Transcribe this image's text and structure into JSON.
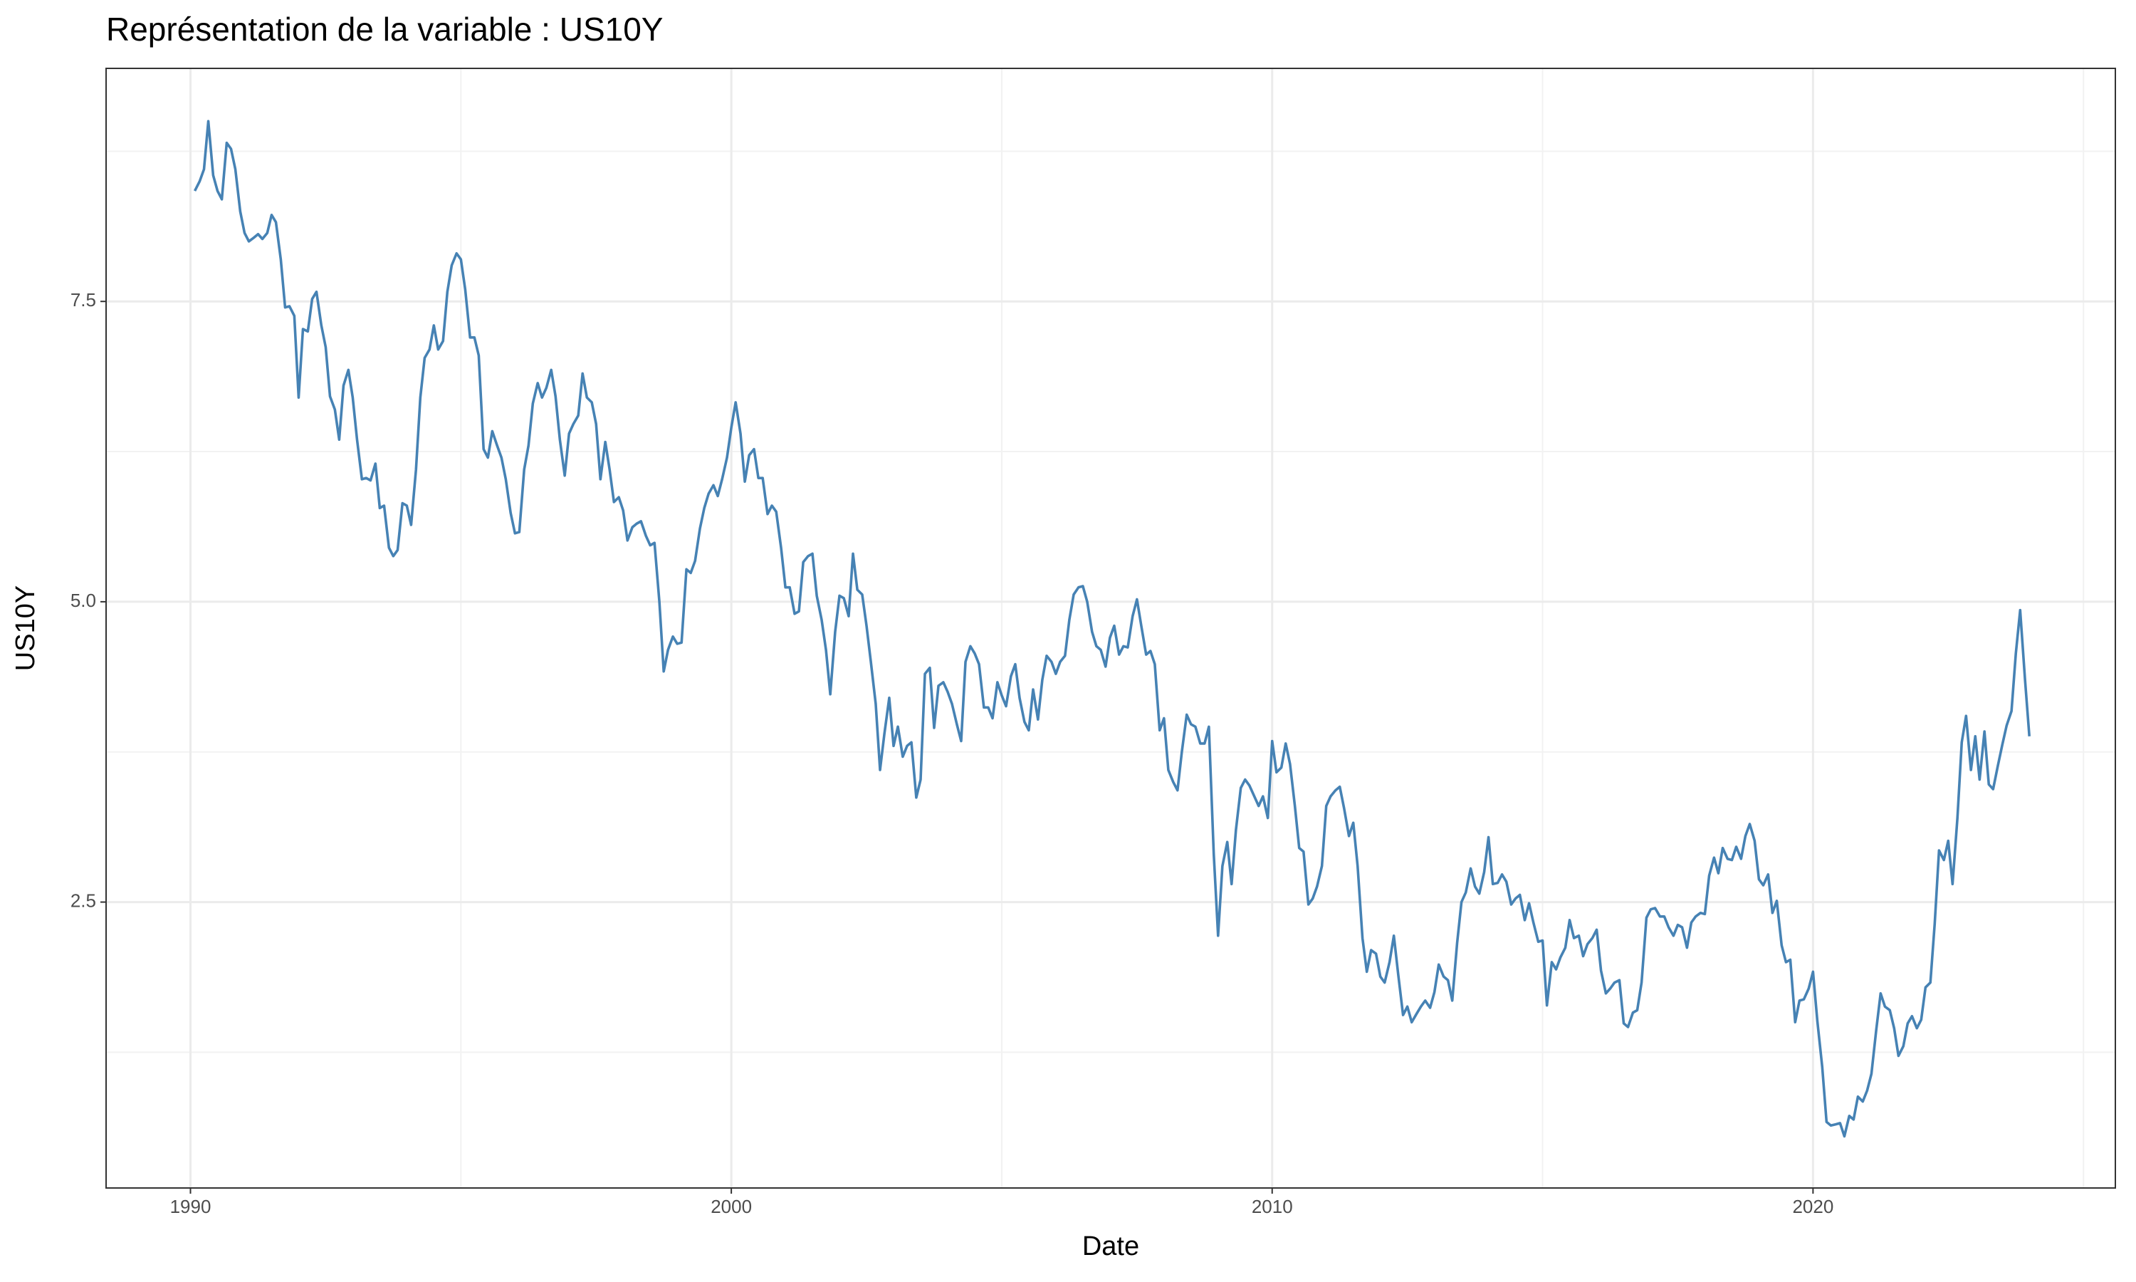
{
  "chart_data": {
    "type": "line",
    "title": "Représentation de la variable :  US10Y",
    "xlabel": "Date",
    "ylabel": "US10Y",
    "color": "#4682b4",
    "grid": true,
    "xlim": [
      1988.44,
      2025.59
    ],
    "xticks": [
      1990,
      2000,
      2010,
      2020
    ],
    "ylim": [
      0.12,
      9.44
    ],
    "yticks": [
      {
        "value": 2.5,
        "label": "2.5"
      },
      {
        "value": 5,
        "label": "5.0"
      },
      {
        "value": 7.5,
        "label": "7.5"
      }
    ],
    "x": [
      1990.08,
      1990.17,
      1990.25,
      1990.33,
      1990.42,
      1990.5,
      1990.58,
      1990.67,
      1990.75,
      1990.83,
      1990.92,
      1991,
      1991.08,
      1991.17,
      1991.25,
      1991.33,
      1991.42,
      1991.5,
      1991.58,
      1991.67,
      1991.75,
      1991.83,
      1991.92,
      1992,
      1992.08,
      1992.17,
      1992.25,
      1992.33,
      1992.42,
      1992.5,
      1992.58,
      1992.67,
      1992.75,
      1992.83,
      1992.92,
      1993,
      1993.08,
      1993.17,
      1993.25,
      1993.33,
      1993.42,
      1993.5,
      1993.58,
      1993.67,
      1993.75,
      1993.83,
      1993.92,
      1994,
      1994.08,
      1994.17,
      1994.25,
      1994.33,
      1994.42,
      1994.5,
      1994.58,
      1994.67,
      1994.75,
      1994.83,
      1994.92,
      1995,
      1995.08,
      1995.17,
      1995.25,
      1995.33,
      1995.42,
      1995.5,
      1995.58,
      1995.67,
      1995.75,
      1995.83,
      1995.92,
      1996,
      1996.08,
      1996.17,
      1996.25,
      1996.33,
      1996.42,
      1996.5,
      1996.58,
      1996.67,
      1996.75,
      1996.83,
      1996.92,
      1997,
      1997.08,
      1997.17,
      1997.25,
      1997.33,
      1997.42,
      1997.5,
      1997.58,
      1997.67,
      1997.75,
      1997.83,
      1997.92,
      1998,
      1998.08,
      1998.17,
      1998.25,
      1998.33,
      1998.42,
      1998.5,
      1998.58,
      1998.67,
      1998.75,
      1998.83,
      1998.92,
      1999,
      1999.08,
      1999.17,
      1999.25,
      1999.33,
      1999.42,
      1999.5,
      1999.58,
      1999.67,
      1999.75,
      1999.83,
      1999.92,
      2000,
      2000.08,
      2000.17,
      2000.25,
      2000.33,
      2000.42,
      2000.5,
      2000.58,
      2000.67,
      2000.75,
      2000.83,
      2000.92,
      2001,
      2001.08,
      2001.17,
      2001.25,
      2001.33,
      2001.42,
      2001.5,
      2001.58,
      2001.67,
      2001.75,
      2001.83,
      2001.92,
      2002,
      2002.08,
      2002.17,
      2002.25,
      2002.33,
      2002.42,
      2002.5,
      2002.58,
      2002.67,
      2002.75,
      2002.83,
      2002.92,
      2003,
      2003.08,
      2003.17,
      2003.25,
      2003.33,
      2003.42,
      2003.5,
      2003.58,
      2003.67,
      2003.75,
      2003.83,
      2003.92,
      2004,
      2004.08,
      2004.17,
      2004.25,
      2004.33,
      2004.42,
      2004.5,
      2004.58,
      2004.67,
      2004.75,
      2004.83,
      2004.92,
      2005,
      2005.08,
      2005.17,
      2005.25,
      2005.33,
      2005.42,
      2005.5,
      2005.58,
      2005.67,
      2005.75,
      2005.83,
      2005.92,
      2006,
      2006.08,
      2006.17,
      2006.25,
      2006.33,
      2006.42,
      2006.5,
      2006.58,
      2006.67,
      2006.75,
      2006.83,
      2006.92,
      2007,
      2007.08,
      2007.17,
      2007.25,
      2007.33,
      2007.42,
      2007.5,
      2007.58,
      2007.67,
      2007.75,
      2007.83,
      2007.92,
      2008,
      2008.08,
      2008.17,
      2008.25,
      2008.33,
      2008.42,
      2008.5,
      2008.58,
      2008.67,
      2008.75,
      2008.83,
      2008.92,
      2009,
      2009.08,
      2009.17,
      2009.25,
      2009.33,
      2009.42,
      2009.5,
      2009.58,
      2009.67,
      2009.75,
      2009.83,
      2009.92,
      2010,
      2010.08,
      2010.17,
      2010.25,
      2010.33,
      2010.42,
      2010.5,
      2010.58,
      2010.67,
      2010.75,
      2010.83,
      2010.92,
      2011,
      2011.08,
      2011.17,
      2011.25,
      2011.33,
      2011.42,
      2011.5,
      2011.58,
      2011.67,
      2011.75,
      2011.83,
      2011.92,
      2012,
      2012.08,
      2012.17,
      2012.25,
      2012.33,
      2012.42,
      2012.5,
      2012.58,
      2012.67,
      2012.75,
      2012.83,
      2012.92,
      2013,
      2013.08,
      2013.17,
      2013.25,
      2013.33,
      2013.42,
      2013.5,
      2013.58,
      2013.67,
      2013.75,
      2013.83,
      2013.92,
      2014,
      2014.08,
      2014.17,
      2014.25,
      2014.33,
      2014.42,
      2014.5,
      2014.58,
      2014.67,
      2014.75,
      2014.83,
      2014.92,
      2015,
      2015.08,
      2015.17,
      2015.25,
      2015.33,
      2015.42,
      2015.5,
      2015.58,
      2015.67,
      2015.75,
      2015.83,
      2015.92,
      2016,
      2016.08,
      2016.17,
      2016.25,
      2016.33,
      2016.42,
      2016.5,
      2016.58,
      2016.67,
      2016.75,
      2016.83,
      2016.92,
      2017,
      2017.08,
      2017.17,
      2017.25,
      2017.33,
      2017.42,
      2017.5,
      2017.58,
      2017.67,
      2017.75,
      2017.83,
      2017.92,
      2018,
      2018.08,
      2018.17,
      2018.25,
      2018.33,
      2018.42,
      2018.5,
      2018.58,
      2018.67,
      2018.75,
      2018.83,
      2018.92,
      2019,
      2019.08,
      2019.17,
      2019.25,
      2019.33,
      2019.42,
      2019.5,
      2019.58,
      2019.67,
      2019.75,
      2019.83,
      2019.92,
      2020,
      2020.08,
      2020.17,
      2020.25,
      2020.33,
      2020.42,
      2020.5,
      2020.58,
      2020.67,
      2020.75,
      2020.83,
      2020.92,
      2021,
      2021.08,
      2021.17,
      2021.25,
      2021.33,
      2021.42,
      2021.5,
      2021.58,
      2021.67,
      2021.75,
      2021.83,
      2021.92,
      2022,
      2022.08,
      2022.17,
      2022.25,
      2022.33,
      2022.42,
      2022.5,
      2022.58,
      2022.67,
      2022.75,
      2022.83,
      2022.92,
      2023,
      2023.08,
      2023.17,
      2023.25,
      2023.33,
      2023.42,
      2023.5,
      2023.58,
      2023.67,
      2023.75,
      2023.83,
      2023.92,
      2024
    ],
    "values": [
      8.42,
      8.5,
      8.6,
      9.0,
      8.55,
      8.42,
      8.35,
      8.82,
      8.77,
      8.6,
      8.25,
      8.07,
      8.0,
      8.03,
      8.06,
      8.02,
      8.07,
      8.22,
      8.16,
      7.85,
      7.45,
      7.46,
      7.38,
      6.7,
      7.27,
      7.25,
      7.52,
      7.58,
      7.3,
      7.12,
      6.71,
      6.6,
      6.35,
      6.8,
      6.93,
      6.7,
      6.35,
      6.02,
      6.03,
      6.01,
      6.15,
      5.78,
      5.8,
      5.45,
      5.38,
      5.43,
      5.82,
      5.8,
      5.64,
      6.1,
      6.7,
      7.03,
      7.1,
      7.3,
      7.1,
      7.17,
      7.58,
      7.8,
      7.9,
      7.85,
      7.6,
      7.2,
      7.2,
      7.05,
      6.27,
      6.2,
      6.42,
      6.3,
      6.2,
      6.02,
      5.74,
      5.57,
      5.58,
      6.1,
      6.3,
      6.65,
      6.82,
      6.7,
      6.78,
      6.93,
      6.71,
      6.35,
      6.05,
      6.4,
      6.48,
      6.55,
      6.9,
      6.7,
      6.66,
      6.48,
      6.02,
      6.33,
      6.1,
      5.83,
      5.87,
      5.76,
      5.51,
      5.62,
      5.65,
      5.67,
      5.55,
      5.47,
      5.49,
      5.0,
      4.42,
      4.6,
      4.71,
      4.65,
      4.66,
      5.27,
      5.24,
      5.34,
      5.61,
      5.78,
      5.9,
      5.97,
      5.88,
      6.02,
      6.2,
      6.45,
      6.66,
      6.4,
      6.0,
      6.22,
      6.27,
      6.03,
      6.03,
      5.73,
      5.8,
      5.75,
      5.45,
      5.12,
      5.12,
      4.9,
      4.92,
      5.33,
      5.38,
      5.4,
      5.05,
      4.85,
      4.6,
      4.23,
      4.75,
      5.05,
      5.03,
      4.88,
      5.4,
      5.1,
      5.06,
      4.8,
      4.5,
      4.15,
      3.6,
      3.9,
      4.2,
      3.8,
      3.96,
      3.71,
      3.8,
      3.83,
      3.37,
      3.52,
      4.4,
      4.45,
      3.95,
      4.3,
      4.33,
      4.25,
      4.15,
      3.98,
      3.84,
      4.5,
      4.63,
      4.57,
      4.48,
      4.12,
      4.12,
      4.03,
      4.33,
      4.22,
      4.13,
      4.38,
      4.48,
      4.2,
      4.0,
      3.93,
      4.27,
      4.02,
      4.35,
      4.55,
      4.5,
      4.4,
      4.5,
      4.55,
      4.85,
      5.06,
      5.12,
      5.13,
      5.0,
      4.75,
      4.63,
      4.6,
      4.46,
      4.7,
      4.8,
      4.56,
      4.63,
      4.62,
      4.88,
      5.02,
      4.8,
      4.56,
      4.59,
      4.48,
      3.93,
      4.03,
      3.6,
      3.5,
      3.43,
      3.75,
      4.06,
      3.98,
      3.96,
      3.82,
      3.82,
      3.96,
      2.9,
      2.22,
      2.8,
      3.0,
      2.65,
      3.1,
      3.45,
      3.52,
      3.47,
      3.38,
      3.3,
      3.38,
      3.2,
      3.84,
      3.58,
      3.62,
      3.82,
      3.65,
      3.3,
      2.95,
      2.92,
      2.48,
      2.53,
      2.63,
      2.8,
      3.3,
      3.38,
      3.43,
      3.46,
      3.28,
      3.05,
      3.16,
      2.8,
      2.2,
      1.92,
      2.1,
      2.07,
      1.88,
      1.83,
      2.0,
      2.22,
      1.9,
      1.56,
      1.63,
      1.5,
      1.57,
      1.63,
      1.68,
      1.62,
      1.75,
      1.98,
      1.88,
      1.85,
      1.68,
      2.16,
      2.5,
      2.58,
      2.78,
      2.63,
      2.57,
      2.75,
      3.04,
      2.65,
      2.66,
      2.73,
      2.67,
      2.48,
      2.53,
      2.56,
      2.35,
      2.49,
      2.33,
      2.17,
      2.18,
      1.64,
      2.0,
      1.94,
      2.04,
      2.12,
      2.35,
      2.2,
      2.22,
      2.05,
      2.15,
      2.2,
      2.27,
      1.93,
      1.74,
      1.78,
      1.83,
      1.85,
      1.49,
      1.46,
      1.58,
      1.6,
      1.83,
      2.37,
      2.44,
      2.45,
      2.38,
      2.38,
      2.29,
      2.22,
      2.31,
      2.29,
      2.12,
      2.33,
      2.38,
      2.41,
      2.4,
      2.72,
      2.87,
      2.74,
      2.95,
      2.86,
      2.85,
      2.96,
      2.86,
      3.05,
      3.15,
      3.01,
      2.69,
      2.64,
      2.73,
      2.41,
      2.51,
      2.14,
      2.0,
      2.02,
      1.5,
      1.68,
      1.69,
      1.78,
      1.92,
      1.51,
      1.13,
      0.67,
      0.64,
      0.65,
      0.66,
      0.55,
      0.72,
      0.69,
      0.88,
      0.84,
      0.93,
      1.07,
      1.44,
      1.74,
      1.63,
      1.6,
      1.45,
      1.22,
      1.3,
      1.49,
      1.55,
      1.45,
      1.52,
      1.79,
      1.83,
      2.32,
      2.93,
      2.85,
      3.01,
      2.65,
      3.2,
      3.83,
      4.05,
      3.6,
      3.88,
      3.52,
      3.92,
      3.48,
      3.44,
      3.64,
      3.81,
      3.97,
      4.09,
      4.57,
      4.93,
      4.35,
      3.88
    ]
  }
}
